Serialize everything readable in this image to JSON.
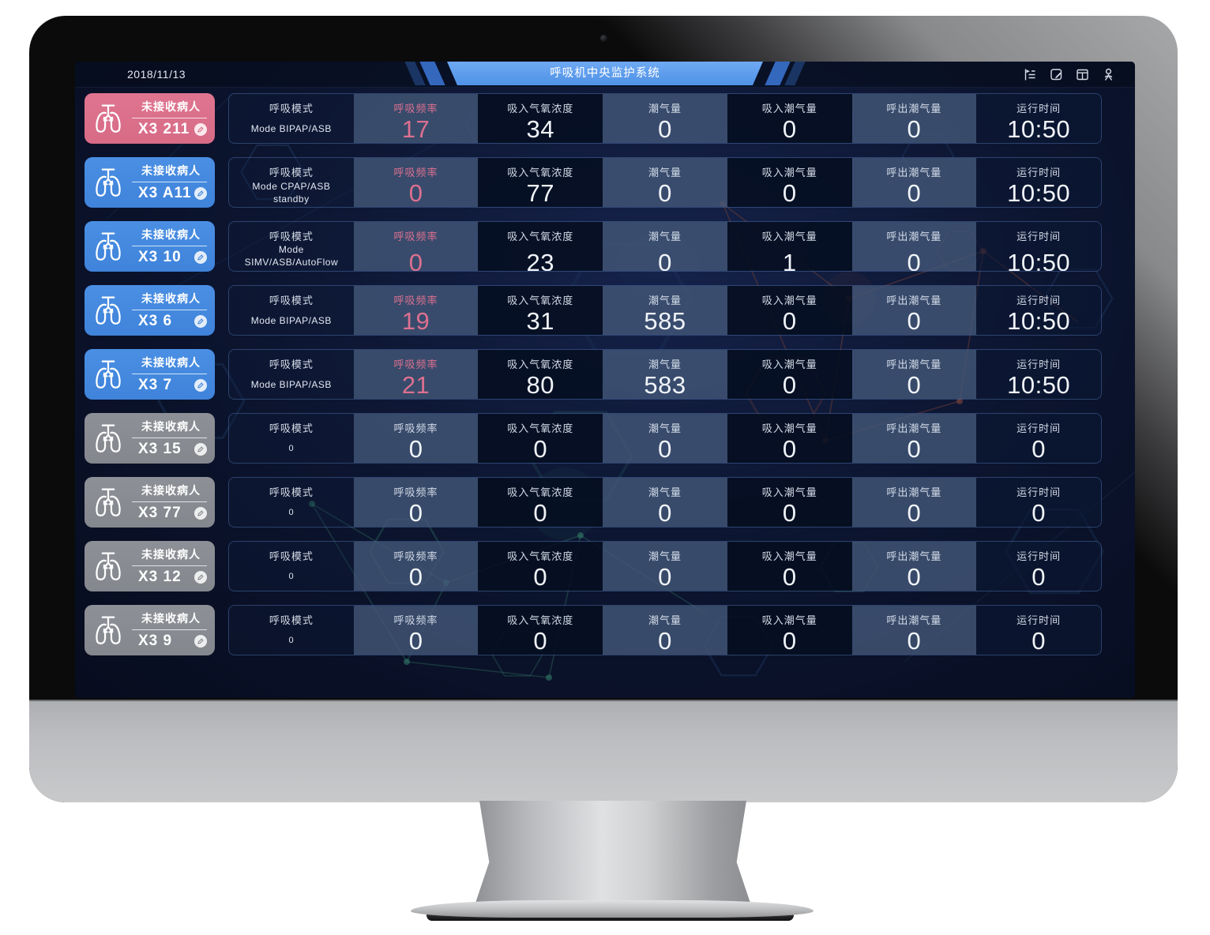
{
  "window": {
    "date": "2018/11/13",
    "title": "呼吸机中央监护系统"
  },
  "header_icons": [
    {
      "name": "tree-menu-icon"
    },
    {
      "name": "edit-note-icon"
    },
    {
      "name": "layout-icon"
    },
    {
      "name": "user-icon"
    }
  ],
  "columns": [
    "呼吸模式",
    "呼吸频率",
    "吸入气氧浓度",
    "潮气量",
    "吸入潮气量",
    "呼出潮气量",
    "运行时间"
  ],
  "patients": [
    {
      "id": "X3 211",
      "status_label": "未接收病人",
      "state": "alarm",
      "values": [
        "Mode BIPAP/ASB",
        "17",
        "34",
        "0",
        "0",
        "0",
        "10:50"
      ]
    },
    {
      "id": "X3 A11",
      "status_label": "未接收病人",
      "state": "active",
      "values": [
        "Mode CPAP/ASB standby",
        "0",
        "77",
        "0",
        "0",
        "0",
        "10:50"
      ]
    },
    {
      "id": "X3 10",
      "status_label": "未接收病人",
      "state": "active",
      "values": [
        "Mode SIMV/ASB/AutoFlow standby",
        "0",
        "23",
        "0",
        "1",
        "0",
        "10:50"
      ]
    },
    {
      "id": "X3 6",
      "status_label": "未接收病人",
      "state": "active",
      "values": [
        "Mode BIPAP/ASB",
        "19",
        "31",
        "585",
        "0",
        "0",
        "10:50"
      ]
    },
    {
      "id": "X3 7",
      "status_label": "未接收病人",
      "state": "active",
      "values": [
        "Mode BIPAP/ASB",
        "21",
        "80",
        "583",
        "0",
        "0",
        "10:50"
      ]
    },
    {
      "id": "X3 15",
      "status_label": "未接收病人",
      "state": "offline",
      "values": [
        "0",
        "0",
        "0",
        "0",
        "0",
        "0",
        "0"
      ]
    },
    {
      "id": "X3 77",
      "status_label": "未接收病人",
      "state": "offline",
      "values": [
        "0",
        "0",
        "0",
        "0",
        "0",
        "0",
        "0"
      ]
    },
    {
      "id": "X3 12",
      "status_label": "未接收病人",
      "state": "offline",
      "values": [
        "0",
        "0",
        "0",
        "0",
        "0",
        "0",
        "0"
      ]
    },
    {
      "id": "X3 9",
      "status_label": "未接收病人",
      "state": "offline",
      "values": [
        "0",
        "0",
        "0",
        "0",
        "0",
        "0",
        "0"
      ]
    }
  ],
  "colors": {
    "alarm": "#df7590",
    "active": "#4a8fe4",
    "offline": "#8d9096",
    "rate_accent": "#dc7090",
    "banner": "#5d9bea"
  }
}
